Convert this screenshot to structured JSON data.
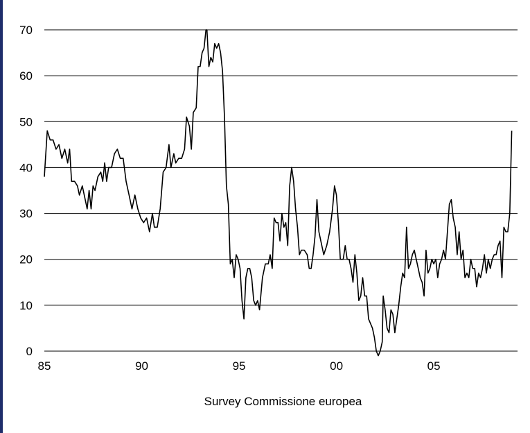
{
  "chart_data": {
    "type": "line",
    "title": "",
    "xlabel": "Survey Commissione europea",
    "ylabel": "",
    "xlim": [
      1985,
      2009.3
    ],
    "ylim": [
      0,
      70
    ],
    "grid": true,
    "x_ticks": [
      1985,
      1990,
      1995,
      2000,
      2005
    ],
    "x_tick_labels": [
      "85",
      "90",
      "95",
      "00",
      "05"
    ],
    "y_ticks": [
      0,
      10,
      20,
      30,
      40,
      50,
      60,
      70
    ],
    "y_tick_labels": [
      "0",
      "10",
      "20",
      "30",
      "40",
      "50",
      "60",
      "70"
    ],
    "series": [
      {
        "color": "#000000",
        "points": [
          [
            1985.0,
            38
          ],
          [
            1985.15,
            48
          ],
          [
            1985.3,
            46
          ],
          [
            1985.45,
            46
          ],
          [
            1985.6,
            44
          ],
          [
            1985.75,
            45
          ],
          [
            1985.9,
            42
          ],
          [
            1986.05,
            44
          ],
          [
            1986.2,
            41
          ],
          [
            1986.3,
            44
          ],
          [
            1986.4,
            37
          ],
          [
            1986.55,
            37
          ],
          [
            1986.7,
            36
          ],
          [
            1986.8,
            34
          ],
          [
            1986.95,
            36
          ],
          [
            1987.1,
            33
          ],
          [
            1987.2,
            31
          ],
          [
            1987.3,
            35
          ],
          [
            1987.4,
            31
          ],
          [
            1987.5,
            36
          ],
          [
            1987.6,
            35
          ],
          [
            1987.75,
            38
          ],
          [
            1987.9,
            39
          ],
          [
            1988.0,
            37
          ],
          [
            1988.1,
            41
          ],
          [
            1988.2,
            37
          ],
          [
            1988.3,
            40
          ],
          [
            1988.45,
            40
          ],
          [
            1988.6,
            43
          ],
          [
            1988.75,
            44
          ],
          [
            1988.9,
            42
          ],
          [
            1989.05,
            42
          ],
          [
            1989.2,
            37
          ],
          [
            1989.35,
            34
          ],
          [
            1989.5,
            31
          ],
          [
            1989.65,
            34
          ],
          [
            1989.8,
            31
          ],
          [
            1989.95,
            29
          ],
          [
            1990.1,
            28
          ],
          [
            1990.25,
            29
          ],
          [
            1990.4,
            26
          ],
          [
            1990.55,
            30
          ],
          [
            1990.65,
            27
          ],
          [
            1990.8,
            27
          ],
          [
            1990.95,
            31
          ],
          [
            1991.1,
            39
          ],
          [
            1991.25,
            40
          ],
          [
            1991.4,
            45
          ],
          [
            1991.5,
            40
          ],
          [
            1991.65,
            43
          ],
          [
            1991.75,
            41
          ],
          [
            1991.9,
            42
          ],
          [
            1992.05,
            42
          ],
          [
            1992.2,
            44
          ],
          [
            1992.3,
            51
          ],
          [
            1992.45,
            49
          ],
          [
            1992.55,
            44
          ],
          [
            1992.65,
            52
          ],
          [
            1992.8,
            53
          ],
          [
            1992.9,
            62
          ],
          [
            1993.0,
            62
          ],
          [
            1993.1,
            65
          ],
          [
            1993.2,
            66
          ],
          [
            1993.3,
            70
          ],
          [
            1993.35,
            70
          ],
          [
            1993.45,
            62
          ],
          [
            1993.55,
            64
          ],
          [
            1993.65,
            63
          ],
          [
            1993.75,
            67
          ],
          [
            1993.85,
            66
          ],
          [
            1993.95,
            67
          ],
          [
            1994.05,
            65
          ],
          [
            1994.15,
            61
          ],
          [
            1994.25,
            51
          ],
          [
            1994.35,
            36
          ],
          [
            1994.45,
            32
          ],
          [
            1994.55,
            19
          ],
          [
            1994.65,
            20
          ],
          [
            1994.75,
            16
          ],
          [
            1994.85,
            21
          ],
          [
            1994.95,
            20
          ],
          [
            1995.05,
            18
          ],
          [
            1995.15,
            11
          ],
          [
            1995.25,
            7
          ],
          [
            1995.35,
            16
          ],
          [
            1995.45,
            18
          ],
          [
            1995.55,
            18
          ],
          [
            1995.65,
            16
          ],
          [
            1995.75,
            11
          ],
          [
            1995.85,
            10
          ],
          [
            1995.95,
            11
          ],
          [
            1996.05,
            9
          ],
          [
            1996.2,
            16
          ],
          [
            1996.35,
            19
          ],
          [
            1996.5,
            19
          ],
          [
            1996.6,
            21
          ],
          [
            1996.7,
            18
          ],
          [
            1996.8,
            29
          ],
          [
            1996.9,
            28
          ],
          [
            1997.0,
            28
          ],
          [
            1997.1,
            24
          ],
          [
            1997.2,
            30
          ],
          [
            1997.3,
            27
          ],
          [
            1997.4,
            28
          ],
          [
            1997.5,
            23
          ],
          [
            1997.6,
            36
          ],
          [
            1997.7,
            40
          ],
          [
            1997.8,
            37
          ],
          [
            1997.9,
            31
          ],
          [
            1998.0,
            27
          ],
          [
            1998.1,
            21
          ],
          [
            1998.2,
            22
          ],
          [
            1998.35,
            22
          ],
          [
            1998.5,
            21
          ],
          [
            1998.6,
            18
          ],
          [
            1998.7,
            18
          ],
          [
            1998.8,
            21
          ],
          [
            1998.9,
            25
          ],
          [
            1999.0,
            33
          ],
          [
            1999.1,
            26
          ],
          [
            1999.2,
            24
          ],
          [
            1999.35,
            21
          ],
          [
            1999.5,
            23
          ],
          [
            1999.65,
            26
          ],
          [
            1999.8,
            31
          ],
          [
            1999.9,
            36
          ],
          [
            2000.0,
            34
          ],
          [
            2000.1,
            28
          ],
          [
            2000.2,
            20
          ],
          [
            2000.35,
            20
          ],
          [
            2000.45,
            23
          ],
          [
            2000.55,
            20
          ],
          [
            2000.65,
            20
          ],
          [
            2000.75,
            18
          ],
          [
            2000.85,
            15
          ],
          [
            2000.95,
            21
          ],
          [
            2001.05,
            17
          ],
          [
            2001.15,
            11
          ],
          [
            2001.25,
            12
          ],
          [
            2001.35,
            16
          ],
          [
            2001.45,
            12
          ],
          [
            2001.55,
            12
          ],
          [
            2001.65,
            7
          ],
          [
            2001.75,
            6
          ],
          [
            2001.85,
            5
          ],
          [
            2001.95,
            3
          ],
          [
            2002.05,
            0
          ],
          [
            2002.15,
            -1
          ],
          [
            2002.25,
            0
          ],
          [
            2002.35,
            2
          ],
          [
            2002.4,
            12
          ],
          [
            2002.5,
            9
          ],
          [
            2002.6,
            5
          ],
          [
            2002.7,
            4
          ],
          [
            2002.8,
            9
          ],
          [
            2002.9,
            8
          ],
          [
            2003.0,
            4
          ],
          [
            2003.1,
            7
          ],
          [
            2003.2,
            10
          ],
          [
            2003.3,
            14
          ],
          [
            2003.4,
            17
          ],
          [
            2003.5,
            16
          ],
          [
            2003.6,
            27
          ],
          [
            2003.7,
            18
          ],
          [
            2003.8,
            19
          ],
          [
            2003.9,
            21
          ],
          [
            2004.0,
            22
          ],
          [
            2004.1,
            20
          ],
          [
            2004.2,
            18
          ],
          [
            2004.3,
            16
          ],
          [
            2004.4,
            15
          ],
          [
            2004.5,
            12
          ],
          [
            2004.6,
            22
          ],
          [
            2004.7,
            17
          ],
          [
            2004.8,
            18
          ],
          [
            2004.9,
            20
          ],
          [
            2005.0,
            19
          ],
          [
            2005.1,
            20
          ],
          [
            2005.2,
            16
          ],
          [
            2005.3,
            19
          ],
          [
            2005.4,
            20
          ],
          [
            2005.5,
            22
          ],
          [
            2005.6,
            20
          ],
          [
            2005.7,
            26
          ],
          [
            2005.8,
            32
          ],
          [
            2005.9,
            33
          ],
          [
            2006.0,
            29
          ],
          [
            2006.1,
            27
          ],
          [
            2006.2,
            21
          ],
          [
            2006.3,
            26
          ],
          [
            2006.4,
            20
          ],
          [
            2006.5,
            22
          ],
          [
            2006.6,
            16
          ],
          [
            2006.7,
            17
          ],
          [
            2006.8,
            16
          ],
          [
            2006.9,
            20
          ],
          [
            2007.0,
            18
          ],
          [
            2007.1,
            18
          ],
          [
            2007.2,
            14
          ],
          [
            2007.3,
            17
          ],
          [
            2007.4,
            16
          ],
          [
            2007.5,
            18
          ],
          [
            2007.6,
            21
          ],
          [
            2007.7,
            17
          ],
          [
            2007.8,
            20
          ],
          [
            2007.9,
            18
          ],
          [
            2008.0,
            20
          ],
          [
            2008.1,
            21
          ],
          [
            2008.2,
            21
          ],
          [
            2008.3,
            23
          ],
          [
            2008.4,
            24
          ],
          [
            2008.5,
            16
          ],
          [
            2008.6,
            27
          ],
          [
            2008.7,
            26
          ],
          [
            2008.8,
            26
          ],
          [
            2008.9,
            30
          ],
          [
            2009.0,
            48
          ]
        ]
      }
    ]
  }
}
